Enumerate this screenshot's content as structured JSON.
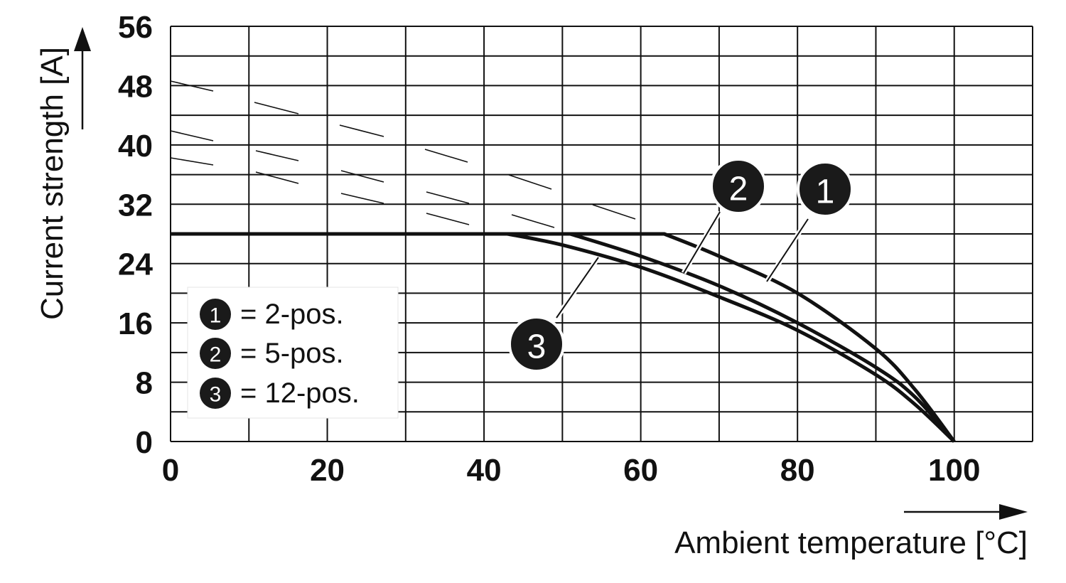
{
  "chart_data": {
    "type": "line",
    "xlabel": "Ambient temperature [°C]",
    "ylabel": "Current strength [A]",
    "xlim": [
      0,
      110
    ],
    "ylim": [
      0,
      56
    ],
    "x_ticks": [
      "0",
      "20",
      "40",
      "60",
      "80",
      "100"
    ],
    "y_ticks": [
      "0",
      "8",
      "16",
      "24",
      "32",
      "40",
      "48",
      "56"
    ],
    "grid": true,
    "series": [
      {
        "name": "1",
        "label": "2-pos.",
        "x": [
          0,
          63,
          70,
          80,
          90,
          95,
          100
        ],
        "y": [
          28,
          28,
          25,
          20,
          12.5,
          7,
          0
        ]
      },
      {
        "name": "2",
        "label": "5-pos.",
        "x": [
          0,
          51,
          60,
          70,
          80,
          90,
          95,
          100
        ],
        "y": [
          28,
          28,
          25,
          21,
          16,
          10,
          6,
          0
        ]
      },
      {
        "name": "3",
        "label": "12-pos.",
        "x": [
          0,
          43,
          50,
          60,
          70,
          80,
          90,
          95,
          100
        ],
        "y": [
          28,
          28,
          26.5,
          23.5,
          19.5,
          15,
          9,
          5,
          0
        ]
      }
    ],
    "legend": {
      "position": "bottom-left",
      "items": [
        {
          "badge": "1",
          "text": "= 2-pos."
        },
        {
          "badge": "2",
          "text": "= 5-pos."
        },
        {
          "badge": "3",
          "text": "= 12-pos."
        }
      ]
    },
    "annotations": [
      {
        "label": "1",
        "series": "1"
      },
      {
        "label": "2",
        "series": "2"
      },
      {
        "label": "3",
        "series": "3"
      }
    ]
  }
}
